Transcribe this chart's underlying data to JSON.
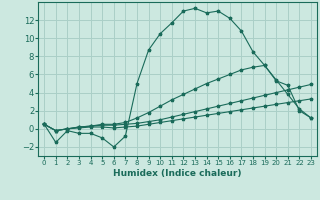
{
  "xlabel": "Humidex (Indice chaleur)",
  "ylabel": "",
  "bg_color": "#cce8e0",
  "grid_color": "#aacfc7",
  "line_color": "#1a6b5a",
  "xlim": [
    -0.5,
    23.5
  ],
  "ylim": [
    -3,
    14
  ],
  "xticks": [
    0,
    1,
    2,
    3,
    4,
    5,
    6,
    7,
    8,
    9,
    10,
    11,
    12,
    13,
    14,
    15,
    16,
    17,
    18,
    19,
    20,
    21,
    22,
    23
  ],
  "yticks": [
    -2,
    0,
    2,
    4,
    6,
    8,
    10,
    12
  ],
  "series": [
    [
      0.5,
      -1.5,
      -0.2,
      -0.5,
      -0.5,
      -1.0,
      -2.0,
      -0.8,
      5.0,
      8.7,
      10.5,
      11.7,
      13.0,
      13.3,
      12.8,
      13.0,
      12.2,
      10.8,
      8.5,
      7.0,
      5.3,
      4.8,
      2.0,
      1.2
    ],
    [
      0.5,
      -0.2,
      0.0,
      0.1,
      0.2,
      0.2,
      0.1,
      0.2,
      0.3,
      0.5,
      0.7,
      0.9,
      1.1,
      1.3,
      1.5,
      1.7,
      1.9,
      2.1,
      2.3,
      2.5,
      2.7,
      2.9,
      3.1,
      3.3
    ],
    [
      0.5,
      -0.2,
      0.0,
      0.2,
      0.3,
      0.4,
      0.4,
      0.5,
      0.6,
      0.8,
      1.0,
      1.3,
      1.6,
      1.9,
      2.2,
      2.5,
      2.8,
      3.1,
      3.4,
      3.7,
      4.0,
      4.3,
      4.6,
      4.9
    ],
    [
      0.5,
      -0.2,
      0.0,
      0.2,
      0.3,
      0.5,
      0.5,
      0.7,
      1.2,
      1.8,
      2.5,
      3.2,
      3.8,
      4.4,
      5.0,
      5.5,
      6.0,
      6.5,
      6.8,
      7.0,
      5.4,
      3.8,
      2.2,
      1.2
    ]
  ]
}
